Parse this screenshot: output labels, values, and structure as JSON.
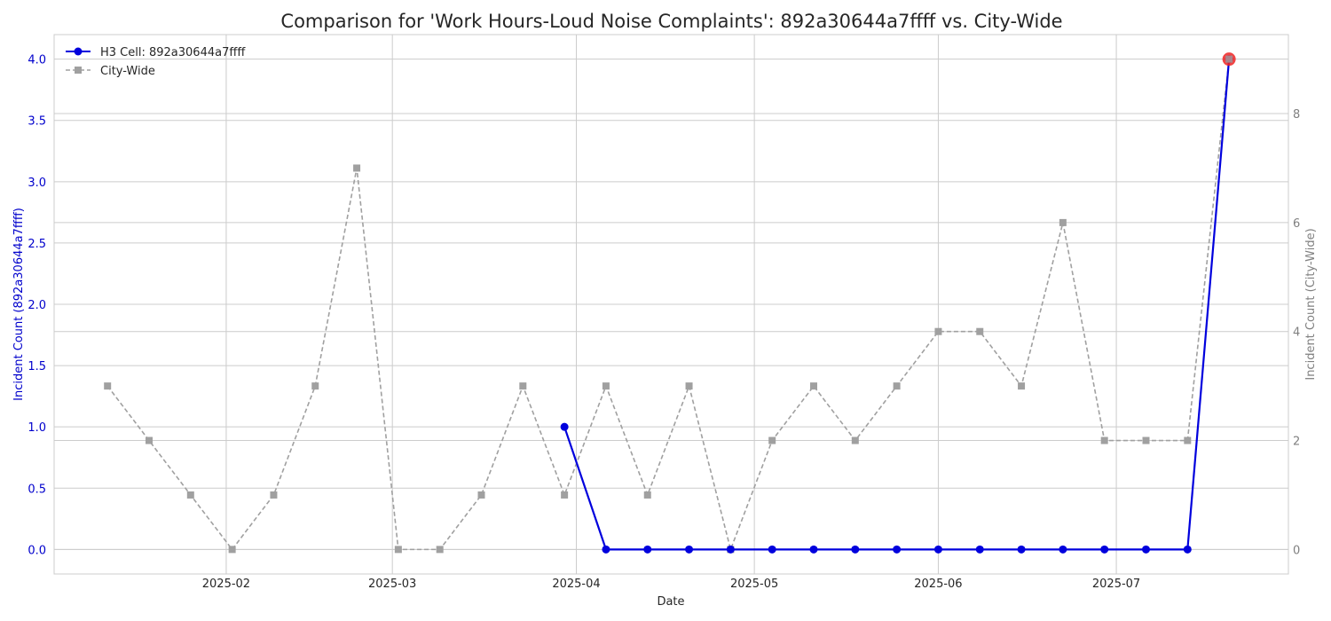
{
  "chart_data": {
    "type": "line",
    "title": "Comparison for 'Work Hours-Loud Noise Complaints': 892a30644a7ffff vs. City-Wide",
    "xlabel": "Date",
    "ylabel_left": "Incident Count (892a30644a7ffff)",
    "ylabel_right": "Incident Count (City-Wide)",
    "ylim_left": [
      -0.2,
      4.2
    ],
    "ylim_right": [
      -0.45,
      9.45
    ],
    "yticks_left": [
      "0.0",
      "0.5",
      "1.0",
      "1.5",
      "2.0",
      "2.5",
      "3.0",
      "3.5",
      "4.0"
    ],
    "yticks_right": [
      "0",
      "2",
      "4",
      "6",
      "8"
    ],
    "xticks": [
      "2025-02",
      "2025-03",
      "2025-04",
      "2025-05",
      "2025-06",
      "2025-07"
    ],
    "xlim": [
      "2025-01-03",
      "2025-07-30"
    ],
    "grid": true,
    "legend_position": "top-left",
    "series": [
      {
        "name": "H3 Cell: 892a30644a7ffff",
        "axis": "left",
        "color": "#0000dd",
        "marker": "circle",
        "line": "solid",
        "x": [
          "2025-03-30",
          "2025-04-06",
          "2025-04-13",
          "2025-04-20",
          "2025-04-27",
          "2025-05-04",
          "2025-05-11",
          "2025-05-18",
          "2025-05-25",
          "2025-06-01",
          "2025-06-08",
          "2025-06-15",
          "2025-06-22",
          "2025-06-29",
          "2025-07-06",
          "2025-07-13",
          "2025-07-20"
        ],
        "values": [
          1,
          0,
          0,
          0,
          0,
          0,
          0,
          0,
          0,
          0,
          0,
          0,
          0,
          0,
          0,
          0,
          4
        ]
      },
      {
        "name": "City-Wide",
        "axis": "right",
        "color": "#a0a0a0",
        "marker": "square",
        "line": "dashed",
        "x": [
          "2025-01-12",
          "2025-01-19",
          "2025-01-26",
          "2025-02-02",
          "2025-02-09",
          "2025-02-16",
          "2025-02-23",
          "2025-03-02",
          "2025-03-09",
          "2025-03-16",
          "2025-03-23",
          "2025-03-30",
          "2025-04-06",
          "2025-04-13",
          "2025-04-20",
          "2025-04-27",
          "2025-05-04",
          "2025-05-11",
          "2025-05-18",
          "2025-05-25",
          "2025-06-01",
          "2025-06-08",
          "2025-06-15",
          "2025-06-22",
          "2025-06-29",
          "2025-07-06",
          "2025-07-13",
          "2025-07-20"
        ],
        "values": [
          3,
          2,
          1,
          0,
          1,
          3,
          7,
          0,
          0,
          1,
          3,
          1,
          3,
          1,
          3,
          0,
          2,
          3,
          2,
          3,
          4,
          4,
          3,
          6,
          2,
          2,
          2,
          9
        ]
      }
    ],
    "highlight": {
      "series": 0,
      "index": 16,
      "color": "#ee2222"
    }
  }
}
